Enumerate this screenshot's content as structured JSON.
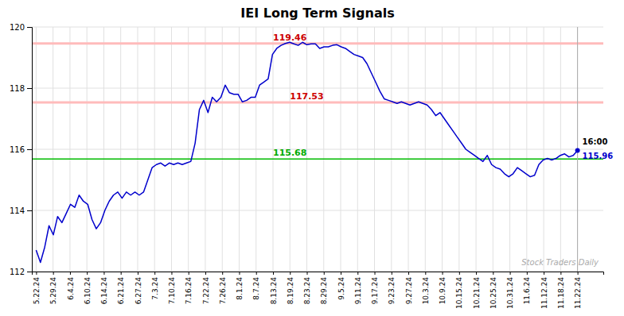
{
  "chart_data": {
    "type": "line",
    "title": "IEI Long Term Signals",
    "color": "#0000cc",
    "grid": true,
    "xlim": [
      -1,
      132
    ],
    "ylim": [
      112,
      120
    ],
    "yticks": [
      112,
      114,
      116,
      118,
      120
    ],
    "xticks": [
      {
        "value": 0,
        "label": "5.22.24"
      },
      {
        "value": 3.9375,
        "label": "5.29.24"
      },
      {
        "value": 7.875,
        "label": "6.4.24"
      },
      {
        "value": 11.8125,
        "label": "6.10.24"
      },
      {
        "value": 15.75,
        "label": "6.14.24"
      },
      {
        "value": 19.6875,
        "label": "6.21.24"
      },
      {
        "value": 23.625,
        "label": "6.27.24"
      },
      {
        "value": 27.5625,
        "label": "7.3.24"
      },
      {
        "value": 31.5,
        "label": "7.10.24"
      },
      {
        "value": 35.4375,
        "label": "7.16.24"
      },
      {
        "value": 39.375,
        "label": "7.22.24"
      },
      {
        "value": 43.3125,
        "label": "7.26.24"
      },
      {
        "value": 47.25,
        "label": "8.1.24"
      },
      {
        "value": 51.1875,
        "label": "8.7.24"
      },
      {
        "value": 55.125,
        "label": "8.13.24"
      },
      {
        "value": 59.0625,
        "label": "8.19.24"
      },
      {
        "value": 63,
        "label": "8.23.24"
      },
      {
        "value": 66.9375,
        "label": "8.29.24"
      },
      {
        "value": 70.875,
        "label": "9.5.24"
      },
      {
        "value": 74.8125,
        "label": "9.11.24"
      },
      {
        "value": 78.75,
        "label": "9.17.24"
      },
      {
        "value": 82.6875,
        "label": "9.23.24"
      },
      {
        "value": 86.625,
        "label": "9.27.24"
      },
      {
        "value": 90.5625,
        "label": "10.3.24"
      },
      {
        "value": 94.5,
        "label": "10.9.24"
      },
      {
        "value": 98.4375,
        "label": "10.15.24"
      },
      {
        "value": 102.375,
        "label": "10.21.24"
      },
      {
        "value": 106.3125,
        "label": "10.25.24"
      },
      {
        "value": 110.25,
        "label": "10.31.24"
      },
      {
        "value": 114.1875,
        "label": "11.6.24"
      },
      {
        "value": 118.125,
        "label": "11.12.24"
      },
      {
        "value": 122.0625,
        "label": "11.18.24"
      },
      {
        "value": 126,
        "label": "11.22.24"
      }
    ],
    "x": [
      0,
      1,
      2,
      3,
      4,
      5,
      6,
      7,
      8,
      9,
      10,
      11,
      12,
      13,
      14,
      15,
      16,
      17,
      18,
      19,
      20,
      21,
      22,
      23,
      24,
      25,
      26,
      27,
      28,
      29,
      30,
      31,
      32,
      33,
      34,
      35,
      36,
      37,
      38,
      39,
      40,
      41,
      42,
      43,
      44,
      45,
      46,
      47,
      48,
      49,
      50,
      51,
      52,
      53,
      54,
      55,
      56,
      57,
      58,
      59,
      60,
      61,
      62,
      63,
      64,
      65,
      66,
      67,
      68,
      69,
      70,
      71,
      72,
      73,
      74,
      75,
      76,
      77,
      78,
      79,
      80,
      81,
      82,
      83,
      84,
      85,
      86,
      87,
      88,
      89,
      90,
      91,
      92,
      93,
      94,
      95,
      96,
      97,
      98,
      99,
      100,
      101,
      102,
      103,
      104,
      105,
      106,
      107,
      108,
      109,
      110,
      111,
      112,
      113,
      114,
      115,
      116,
      117,
      118,
      119,
      120,
      121,
      122,
      123,
      124,
      125,
      126
    ],
    "values": [
      112.7,
      112.3,
      112.8,
      113.5,
      113.2,
      113.8,
      113.6,
      113.9,
      114.2,
      114.1,
      114.5,
      114.3,
      114.2,
      113.7,
      113.4,
      113.6,
      114.0,
      114.3,
      114.5,
      114.6,
      114.4,
      114.6,
      114.5,
      114.6,
      114.5,
      114.6,
      115.0,
      115.4,
      115.5,
      115.55,
      115.45,
      115.55,
      115.5,
      115.55,
      115.5,
      115.55,
      115.6,
      116.2,
      117.3,
      117.6,
      117.2,
      117.7,
      117.55,
      117.7,
      118.1,
      117.85,
      117.8,
      117.8,
      117.55,
      117.6,
      117.7,
      117.7,
      118.1,
      118.2,
      118.3,
      119.1,
      119.3,
      119.4,
      119.46,
      119.5,
      119.45,
      119.4,
      119.5,
      119.42,
      119.45,
      119.45,
      119.3,
      119.35,
      119.35,
      119.4,
      119.42,
      119.35,
      119.3,
      119.2,
      119.1,
      119.05,
      119.0,
      118.8,
      118.5,
      118.2,
      117.9,
      117.65,
      117.6,
      117.55,
      117.5,
      117.55,
      117.5,
      117.45,
      117.5,
      117.55,
      117.5,
      117.45,
      117.3,
      117.1,
      117.2,
      117.0,
      116.8,
      116.6,
      116.4,
      116.2,
      116.0,
      115.9,
      115.8,
      115.7,
      115.6,
      115.8,
      115.5,
      115.4,
      115.35,
      115.2,
      115.1,
      115.2,
      115.4,
      115.3,
      115.2,
      115.1,
      115.15,
      115.5,
      115.65,
      115.7,
      115.65,
      115.7,
      115.8,
      115.85,
      115.75,
      115.8,
      115.96
    ],
    "reference_lines": [
      {
        "value": 119.46,
        "color": "#ffbbbb",
        "label": "119.46",
        "label_color": "#cc0000"
      },
      {
        "value": 117.53,
        "color": "#ffbbbb",
        "label": "117.53",
        "label_color": "#cc0000"
      },
      {
        "value": 115.68,
        "color": "#00bb00",
        "label": "115.68",
        "label_color": "#00aa00"
      }
    ],
    "annotations": [
      {
        "text": "16:00",
        "color": "#000000"
      },
      {
        "text": "115.96",
        "color": "#0000cc"
      }
    ],
    "watermark": {
      "text": "Stock Traders Daily",
      "color": "#aaaaaa"
    }
  }
}
